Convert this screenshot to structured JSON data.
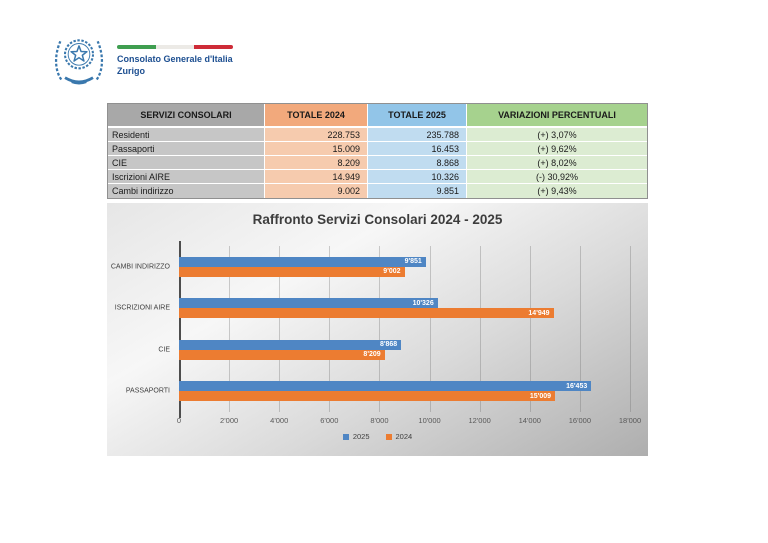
{
  "header": {
    "org_name": "Consolato Generale d'Italia",
    "org_city": "Zurigo",
    "text_color": "#1d4f91",
    "emblem_icon": "italy-republic-emblem",
    "flag_colors": [
      "#3f9e50",
      "#eceae6",
      "#ce2b37"
    ]
  },
  "table": {
    "columns": [
      {
        "label": "SERVIZI CONSOLARI",
        "header_bg": "#a8a8a8",
        "cell_bg": "#c6c6c6"
      },
      {
        "label": "TOTALE 2024",
        "header_bg": "#f2a97c",
        "cell_bg": "#f6cbae"
      },
      {
        "label": "TOTALE 2025",
        "header_bg": "#92c5e8",
        "cell_bg": "#c0dcf0"
      },
      {
        "label": "VARIAZIONI PERCENTUALI",
        "header_bg": "#a6d28e",
        "cell_bg": "#dcecd2"
      }
    ],
    "rows": [
      {
        "service": "Residenti",
        "total_2024": "228.753",
        "total_2025": "235.788",
        "variation": "(+) 3,07%"
      },
      {
        "service": "Passaporti",
        "total_2024": "15.009",
        "total_2025": "16.453",
        "variation": "(+) 9,62%"
      },
      {
        "service": "CIE",
        "total_2024": "8.209",
        "total_2025": "8.868",
        "variation": "(+) 8,02%"
      },
      {
        "service": "Iscrizioni AIRE",
        "total_2024": "14.949",
        "total_2025": "10.326",
        "variation": "(-) 30,92%"
      },
      {
        "service": "Cambi indirizzo",
        "total_2024": "9.002",
        "total_2025": "9.851",
        "variation": "(+) 9,43%"
      }
    ]
  },
  "chart_data": {
    "type": "bar",
    "orientation": "horizontal",
    "title": "Raffronto Servizi Consolari 2024 - 2025",
    "categories": [
      "CAMBI INDIRIZZO",
      "ISCRIZIONI AIRE",
      "CIE",
      "PASSAPORTI"
    ],
    "series": [
      {
        "name": "2025",
        "color": "#4f86c4",
        "values": [
          9851,
          10326,
          8868,
          16453
        ],
        "labels": [
          "9'851",
          "10'326",
          "8'868",
          "16'453"
        ]
      },
      {
        "name": "2024",
        "color": "#ec7c31",
        "values": [
          9002,
          14949,
          8209,
          15009
        ],
        "labels": [
          "9'002",
          "14'949",
          "8'209",
          "15'009"
        ]
      }
    ],
    "xlim": [
      0,
      18000
    ],
    "x_ticks": [
      "0",
      "2'000",
      "4'000",
      "6'000",
      "8'000",
      "10'000",
      "12'000",
      "14'000",
      "16'000",
      "18'000"
    ],
    "grid": true,
    "legend_position": "bottom"
  }
}
